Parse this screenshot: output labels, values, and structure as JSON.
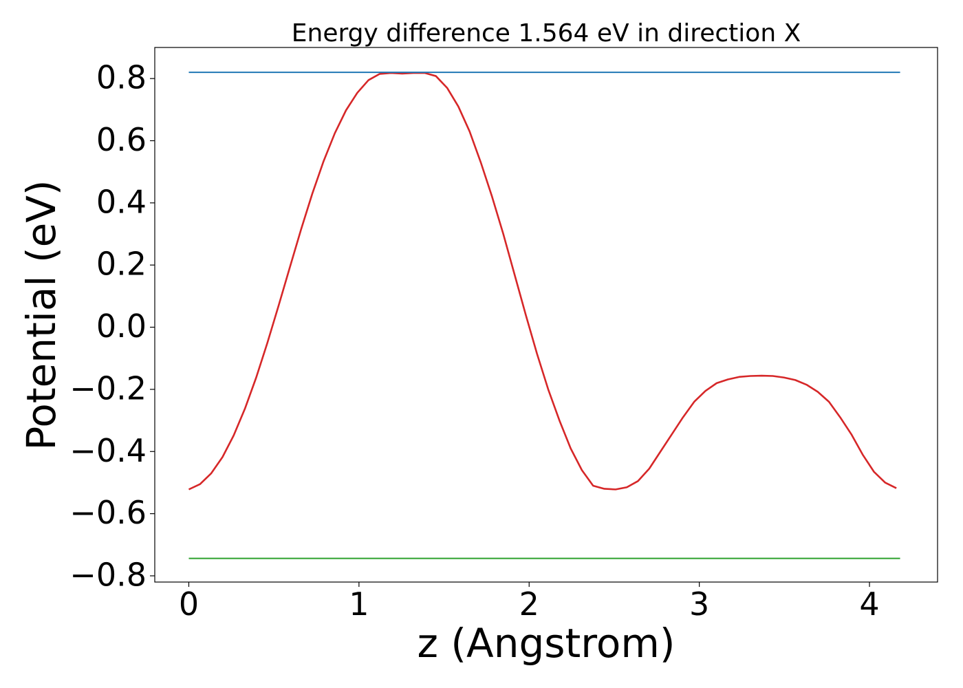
{
  "chart_data": {
    "type": "line",
    "title": "Energy difference 1.564 eV in direction X",
    "xlabel": "z (Angstrom)",
    "ylabel": "Potential (eV)",
    "xlim": [
      -0.2,
      4.4
    ],
    "ylim": [
      -0.82,
      0.9
    ],
    "xticks": [
      0,
      1,
      2,
      3,
      4
    ],
    "xtick_labels": [
      "0",
      "1",
      "2",
      "3",
      "4"
    ],
    "yticks": [
      -0.8,
      -0.6,
      -0.4,
      -0.2,
      0.0,
      0.2,
      0.4,
      0.6,
      0.8
    ],
    "ytick_labels": [
      "−0.8",
      "−0.6",
      "−0.4",
      "−0.2",
      "0.0",
      "0.2",
      "0.4",
      "0.6",
      "0.8"
    ],
    "grid": false,
    "series": [
      {
        "color": "#d62728",
        "x": [
          0.0,
          0.066,
          0.132,
          0.198,
          0.264,
          0.33,
          0.396,
          0.462,
          0.528,
          0.594,
          0.66,
          0.726,
          0.792,
          0.858,
          0.924,
          0.99,
          1.056,
          1.122,
          1.188,
          1.254,
          1.32,
          1.386,
          1.452,
          1.518,
          1.584,
          1.65,
          1.716,
          1.782,
          1.848,
          1.914,
          1.98,
          2.046,
          2.112,
          2.178,
          2.244,
          2.31,
          2.376,
          2.442,
          2.508,
          2.574,
          2.64,
          2.706,
          2.772,
          2.838,
          2.904,
          2.97,
          3.036,
          3.102,
          3.168,
          3.234,
          3.3,
          3.366,
          3.432,
          3.498,
          3.564,
          3.63,
          3.696,
          3.762,
          3.828,
          3.894,
          3.96,
          4.026,
          4.092,
          4.158
        ],
        "y": [
          -0.522,
          -0.505,
          -0.47,
          -0.418,
          -0.348,
          -0.262,
          -0.162,
          -0.05,
          0.07,
          0.193,
          0.315,
          0.43,
          0.534,
          0.624,
          0.698,
          0.754,
          0.795,
          0.815,
          0.818,
          0.816,
          0.818,
          0.818,
          0.808,
          0.77,
          0.71,
          0.63,
          0.53,
          0.42,
          0.3,
          0.17,
          0.04,
          -0.085,
          -0.2,
          -0.3,
          -0.39,
          -0.46,
          -0.51,
          -0.52,
          -0.522,
          -0.515,
          -0.495,
          -0.455,
          -0.4,
          -0.345,
          -0.29,
          -0.24,
          -0.205,
          -0.18,
          -0.168,
          -0.16,
          -0.157,
          -0.156,
          -0.157,
          -0.162,
          -0.17,
          -0.185,
          -0.208,
          -0.24,
          -0.29,
          -0.345,
          -0.41,
          -0.465,
          -0.5,
          -0.518
        ]
      },
      {
        "color": "#1f77b4",
        "x": [
          0.0,
          4.18
        ],
        "y": [
          0.82,
          0.82
        ]
      },
      {
        "color": "#2ca02c",
        "x": [
          0.0,
          4.18
        ],
        "y": [
          -0.744,
          -0.744
        ]
      }
    ]
  }
}
